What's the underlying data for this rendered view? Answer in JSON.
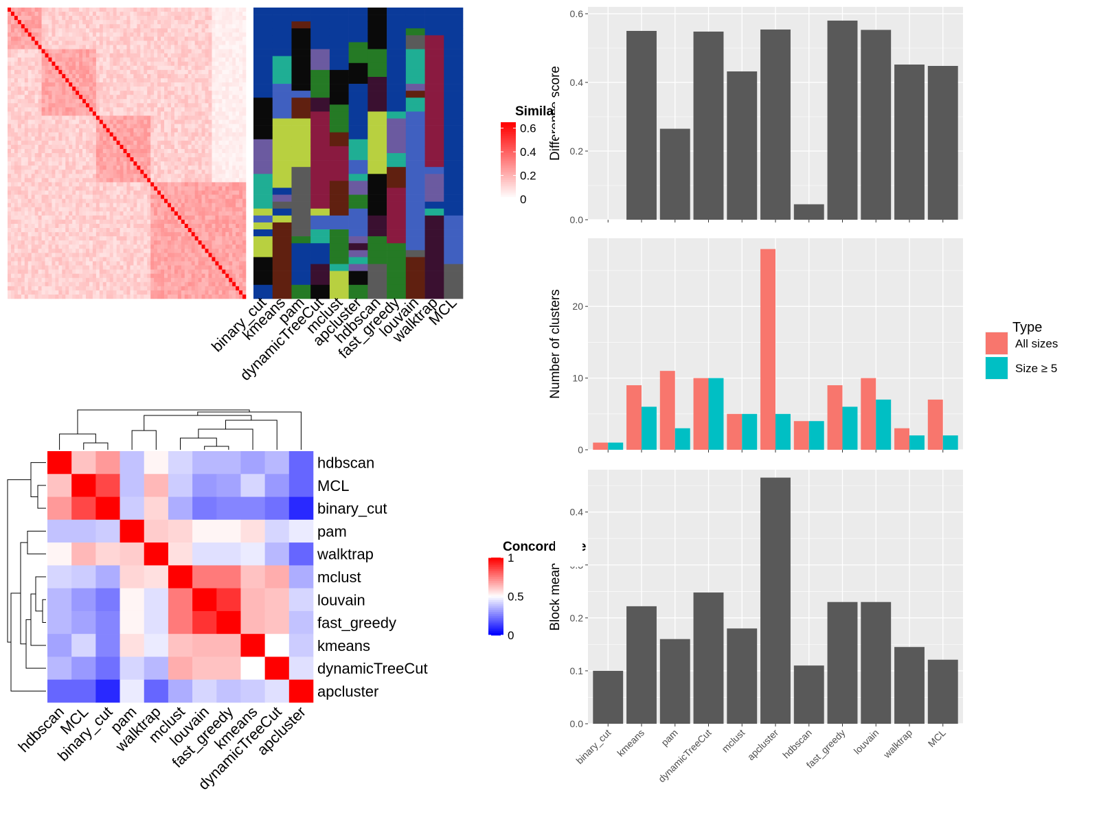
{
  "chart_data": [
    {
      "type": "heatmap",
      "name": "similarity-heatmap",
      "legend_title": "Similarity",
      "legend_ticks": [
        "0.6",
        "0.4",
        "0.2",
        "0"
      ],
      "legend_range": [
        0,
        0.65
      ]
    },
    {
      "type": "heatmap",
      "name": "cluster-assignment-heatmap",
      "columns": [
        "binary_cut",
        "kmeans",
        "pam",
        "dynamicTreeCut",
        "mclust",
        "apcluster",
        "hdbscan",
        "fast_greedy",
        "louvain",
        "walktrap",
        "MCL"
      ]
    },
    {
      "type": "heatmap",
      "name": "concordance-heatmap",
      "legend_title": "Concordance",
      "legend_ticks": [
        "1",
        "0.5",
        "0"
      ],
      "legend_range": [
        0,
        1
      ],
      "rows": [
        "hdbscan",
        "MCL",
        "binary_cut",
        "pam",
        "walktrap",
        "mclust",
        "louvain",
        "fast_greedy",
        "kmeans",
        "dynamicTreeCut",
        "apcluster"
      ],
      "columns": [
        "hdbscan",
        "MCL",
        "binary_cut",
        "pam",
        "walktrap",
        "mclust",
        "louvain",
        "fast_greedy",
        "kmeans",
        "dynamicTreeCut",
        "apcluster"
      ],
      "values": [
        [
          1.0,
          0.62,
          0.7,
          0.38,
          0.52,
          0.42,
          0.36,
          0.36,
          0.32,
          0.36,
          0.2
        ],
        [
          0.62,
          1.0,
          0.86,
          0.38,
          0.64,
          0.4,
          0.3,
          0.32,
          0.42,
          0.3,
          0.2
        ],
        [
          0.7,
          0.86,
          1.0,
          0.4,
          0.58,
          0.34,
          0.24,
          0.26,
          0.26,
          0.22,
          0.08
        ],
        [
          0.38,
          0.38,
          0.4,
          1.0,
          0.6,
          0.58,
          0.52,
          0.52,
          0.56,
          0.42,
          0.46
        ],
        [
          0.52,
          0.64,
          0.58,
          0.6,
          1.0,
          0.56,
          0.44,
          0.44,
          0.46,
          0.36,
          0.2
        ],
        [
          0.42,
          0.4,
          0.34,
          0.58,
          0.56,
          1.0,
          0.76,
          0.76,
          0.62,
          0.66,
          0.34
        ],
        [
          0.36,
          0.3,
          0.24,
          0.52,
          0.44,
          0.76,
          1.0,
          0.9,
          0.64,
          0.62,
          0.42
        ],
        [
          0.36,
          0.32,
          0.26,
          0.52,
          0.44,
          0.76,
          0.9,
          1.0,
          0.64,
          0.62,
          0.38
        ],
        [
          0.32,
          0.42,
          0.26,
          0.56,
          0.46,
          0.62,
          0.64,
          0.64,
          1.0,
          0.5,
          0.4
        ],
        [
          0.36,
          0.3,
          0.22,
          0.42,
          0.36,
          0.66,
          0.62,
          0.62,
          0.5,
          1.0,
          0.44
        ],
        [
          0.2,
          0.2,
          0.08,
          0.46,
          0.2,
          0.34,
          0.42,
          0.38,
          0.4,
          0.44,
          1.0
        ]
      ]
    },
    {
      "type": "bar",
      "name": "difference-score",
      "ylabel": "Difference score",
      "ylim": [
        0,
        0.62
      ],
      "yticks": [
        0.0,
        0.2,
        0.4,
        0.6
      ],
      "categories": [
        "binary_cut",
        "kmeans",
        "pam",
        "dynamicTreeCut",
        "mclust",
        "apcluster",
        "hdbscan",
        "fast_greedy",
        "louvain",
        "walktrap",
        "MCL"
      ],
      "values": [
        0.0,
        0.55,
        0.265,
        0.548,
        0.432,
        0.554,
        0.045,
        0.58,
        0.553,
        0.452,
        0.448
      ]
    },
    {
      "type": "bar",
      "name": "number-of-clusters",
      "ylabel": "Number of clusters",
      "ylim": [
        0,
        29.5
      ],
      "yticks": [
        0,
        10,
        20
      ],
      "categories": [
        "binary_cut",
        "kmeans",
        "pam",
        "dynamicTreeCut",
        "mclust",
        "apcluster",
        "hdbscan",
        "fast_greedy",
        "louvain",
        "walktrap",
        "MCL"
      ],
      "legend_title": "Type",
      "series": [
        {
          "name": "All sizes",
          "color": "#F8766D",
          "values": [
            1,
            9,
            11,
            10,
            5,
            28,
            4,
            9,
            10,
            3,
            7
          ]
        },
        {
          "name": "Size ≥ 5",
          "color": "#00BFC4",
          "values": [
            1,
            6,
            3,
            10,
            5,
            5,
            4,
            6,
            7,
            2,
            2
          ]
        }
      ]
    },
    {
      "type": "bar",
      "name": "block-mean",
      "ylabel": "Block mean",
      "ylim": [
        0,
        0.48
      ],
      "yticks": [
        0.0,
        0.1,
        0.2,
        0.3,
        0.4
      ],
      "categories": [
        "binary_cut",
        "kmeans",
        "pam",
        "dynamicTreeCut",
        "mclust",
        "apcluster",
        "hdbscan",
        "fast_greedy",
        "louvain",
        "walktrap",
        "MCL"
      ],
      "values": [
        0.1,
        0.222,
        0.16,
        0.248,
        0.18,
        0.465,
        0.11,
        0.23,
        0.23,
        0.145,
        0.121
      ]
    }
  ]
}
